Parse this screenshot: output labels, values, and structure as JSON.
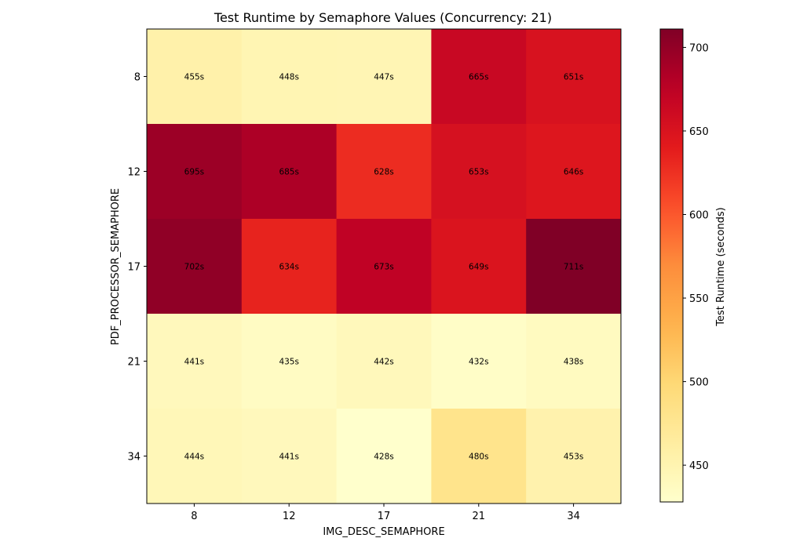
{
  "chart_data": {
    "type": "heatmap",
    "title": "Test Runtime by Semaphore Values (Concurrency: 21)",
    "xlabel": "IMG_DESC_SEMAPHORE",
    "ylabel": "PDF_PROCESSOR_SEMAPHORE",
    "x_categories": [
      "8",
      "12",
      "17",
      "21",
      "34"
    ],
    "y_categories": [
      "8",
      "12",
      "17",
      "21",
      "34"
    ],
    "values": [
      [
        455,
        448,
        447,
        665,
        651
      ],
      [
        695,
        685,
        628,
        653,
        646
      ],
      [
        702,
        634,
        673,
        649,
        711
      ],
      [
        441,
        435,
        442,
        432,
        438
      ],
      [
        444,
        441,
        428,
        480,
        453
      ]
    ],
    "value_suffix": "s",
    "colorbar": {
      "label": "Test Runtime (seconds)",
      "min": 428,
      "max": 711,
      "ticks": [
        450,
        500,
        550,
        600,
        650,
        700
      ],
      "colormap": "YlOrRd"
    }
  }
}
